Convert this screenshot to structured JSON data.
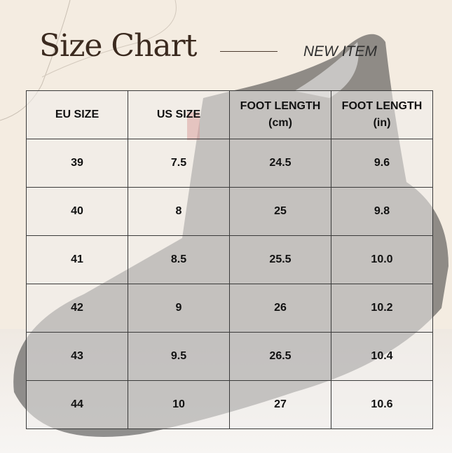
{
  "header": {
    "title": "Size Chart",
    "subtitle": "NEW ITEM"
  },
  "table": {
    "columns": [
      "EU SIZE",
      "US SIZE",
      "FOOT LENGTH\n(cm)",
      "FOOT LENGTH\n(in)"
    ],
    "rows": [
      [
        "39",
        "7.5",
        "24.5",
        "9.6"
      ],
      [
        "40",
        "8",
        "25",
        "9.8"
      ],
      [
        "41",
        "8.5",
        "25.5",
        "10.0"
      ],
      [
        "42",
        "9",
        "26",
        "10.2"
      ],
      [
        "43",
        "9.5",
        "26.5",
        "10.4"
      ],
      [
        "44",
        "10",
        "27",
        "10.6"
      ]
    ]
  },
  "colors": {
    "background": "#f4ece1",
    "title": "#3b2a1f",
    "border": "#3a3a3a"
  }
}
